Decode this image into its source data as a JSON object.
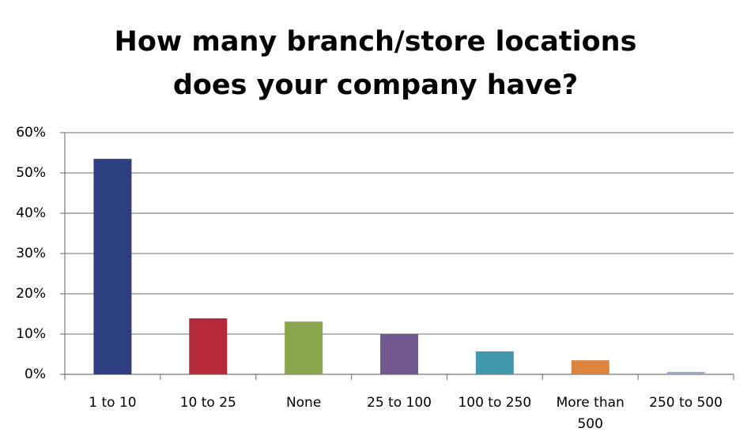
{
  "chart_data": {
    "type": "bar",
    "title": "How many branch/store locations does your company have?",
    "categories": [
      "1 to 10",
      "10 to 25",
      "None",
      "25 to 100",
      "100 to 250",
      "More than 500",
      "250 to 500"
    ],
    "values": [
      53.5,
      13.9,
      13.1,
      10,
      5.7,
      3.5,
      0.6
    ],
    "colors": [
      "#2e3f7f",
      "#b5293a",
      "#89a54e",
      "#71588f",
      "#4198af",
      "#db843d",
      "#93a9cf"
    ],
    "ylim": [
      0,
      60
    ],
    "yticks": [
      {
        "value": 0,
        "label": "0%"
      },
      {
        "value": 10,
        "label": "10%"
      },
      {
        "value": 20,
        "label": "20%"
      },
      {
        "value": 30,
        "label": "30%"
      },
      {
        "value": 40,
        "label": "40%"
      },
      {
        "value": 50,
        "label": "50%"
      },
      {
        "value": 60,
        "label": "60%"
      }
    ],
    "grid": true
  }
}
